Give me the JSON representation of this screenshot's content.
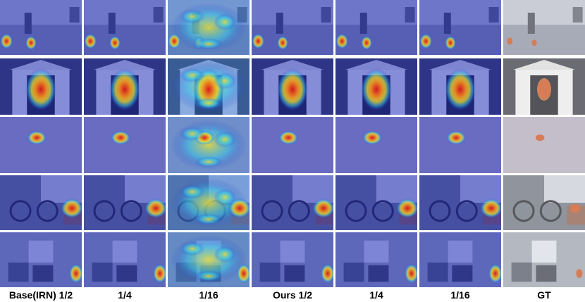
{
  "figure": {
    "columns": [
      {
        "label": "Base(IRN)  1/2",
        "kind": "cam"
      },
      {
        "label": "1/4",
        "kind": "cam"
      },
      {
        "label": "1/16",
        "kind": "cam-noisy"
      },
      {
        "label": "Ours   1/2",
        "kind": "cam"
      },
      {
        "label": "1/4",
        "kind": "cam"
      },
      {
        "label": "1/16",
        "kind": "cam"
      },
      {
        "label": "GT",
        "kind": "gt"
      }
    ],
    "rows": [
      {
        "scene": "street-dogs"
      },
      {
        "scene": "doghouse-dog"
      },
      {
        "scene": "plain-small-object"
      },
      {
        "scene": "bicycles-room"
      },
      {
        "scene": "kitchen-room"
      }
    ],
    "colors": {
      "overlay_blue": "#2230c8",
      "heat_red": "#d81e1e",
      "heat_yellow": "#f0e030",
      "heat_cyan": "#38c8e8",
      "gt_object": "#c8501e"
    }
  }
}
